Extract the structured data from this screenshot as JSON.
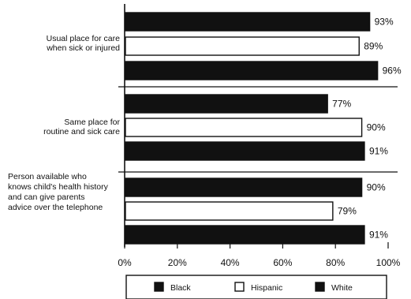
{
  "chart_data": {
    "type": "bar",
    "orientation": "horizontal",
    "categories": [
      [
        "Usual place for care",
        "when sick or injured"
      ],
      [
        "Same place for",
        "routine and sick care"
      ],
      [
        "Person available who",
        "knows child's health history",
        "and can give parents",
        "advice over the telephone"
      ]
    ],
    "series": [
      {
        "name": "Black",
        "values": [
          93,
          77,
          90
        ],
        "labels": [
          "93%",
          "77%",
          "90%"
        ],
        "color": "#111111"
      },
      {
        "name": "Hispanic",
        "values": [
          89,
          90,
          79
        ],
        "labels": [
          "89%",
          "90%",
          "79%"
        ],
        "color": "#ffffff"
      },
      {
        "name": "White",
        "values": [
          96,
          91,
          91
        ],
        "labels": [
          "96%",
          "91%",
          "91%"
        ],
        "color": "#111111"
      }
    ],
    "xlim": [
      0,
      100
    ],
    "xticks": [
      0,
      20,
      40,
      60,
      80,
      100
    ],
    "xtick_labels": [
      "0%",
      "20%",
      "40%",
      "60%",
      "80%",
      "100%"
    ],
    "grid": false,
    "legend_position": "bottom"
  }
}
